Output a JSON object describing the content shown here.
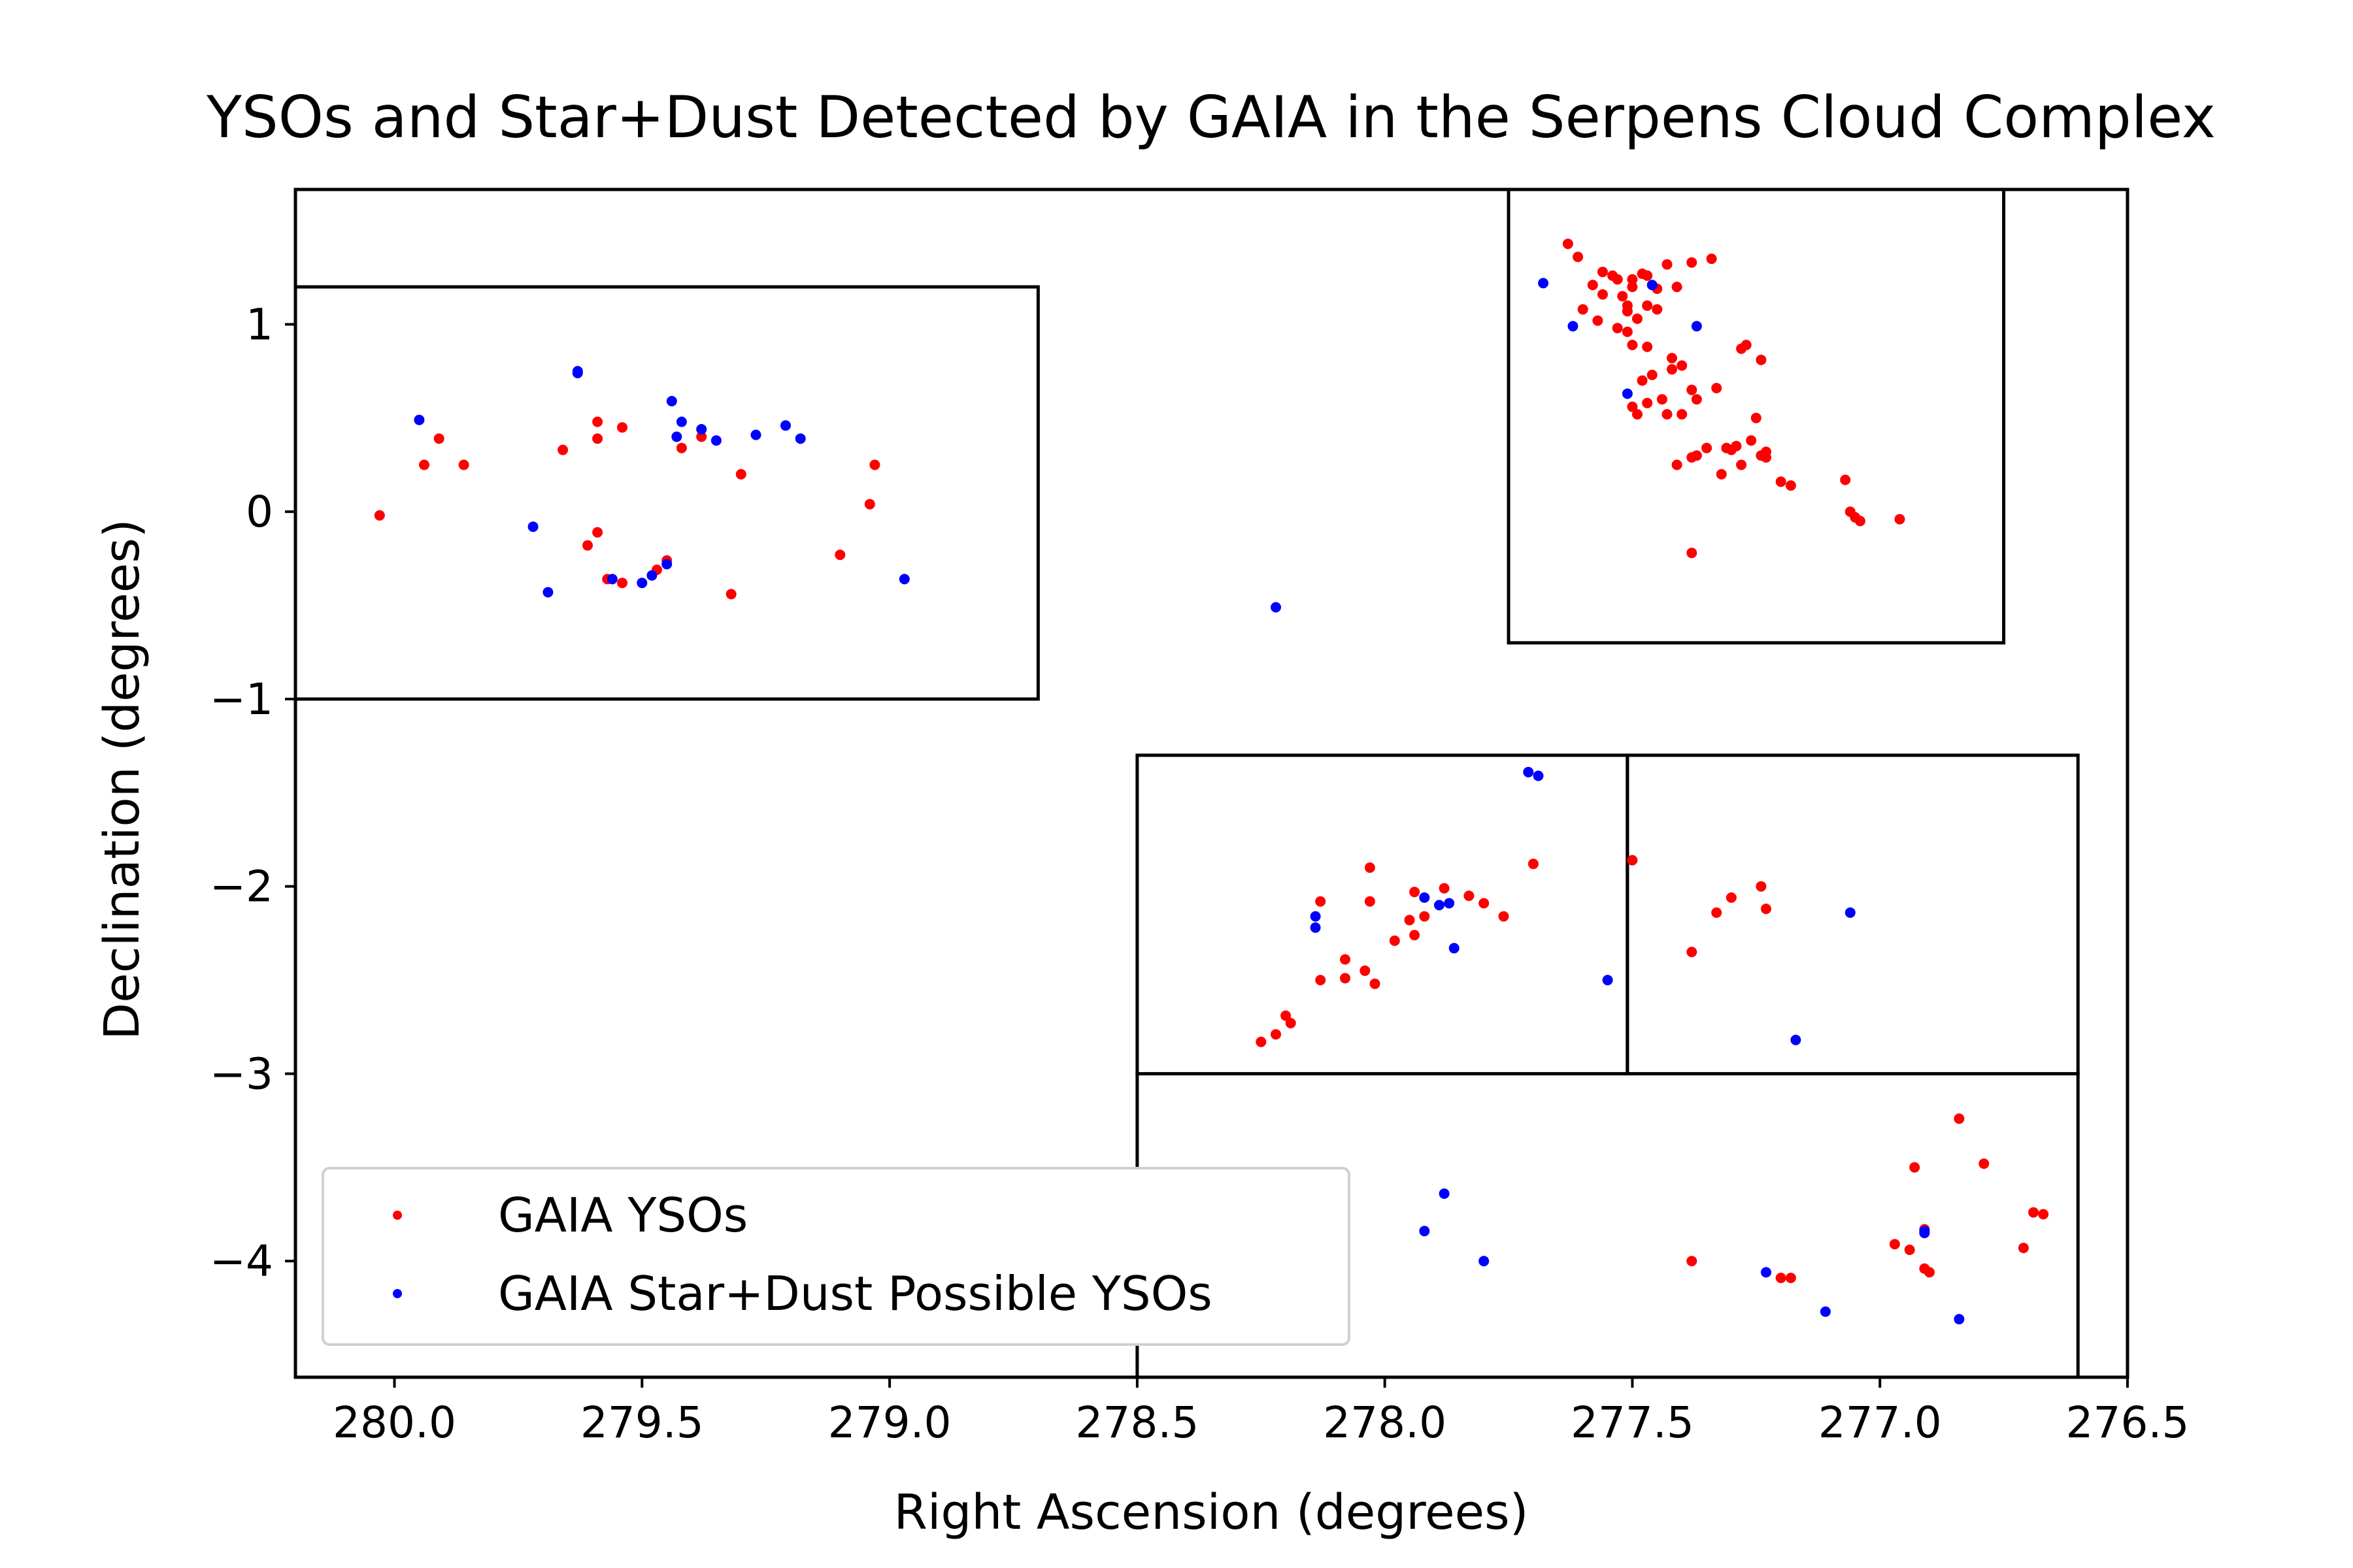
{
  "chart_data": {
    "type": "scatter",
    "title": "YSOs and Star+Dust Detected by GAIA in the Serpens Cloud Complex",
    "xlabel": "Right Ascension (degrees)",
    "ylabel": "Declination (degrees)",
    "xlim": [
      280.2,
      276.5
    ],
    "ylim": [
      -4.62,
      1.72
    ],
    "x_inverted": true,
    "xticks": [
      280.0,
      279.5,
      279.0,
      278.5,
      278.0,
      277.5,
      277.0,
      276.5
    ],
    "xtick_labels": [
      "280.0",
      "279.5",
      "279.0",
      "278.5",
      "278.0",
      "277.5",
      "277.0",
      "276.5"
    ],
    "yticks": [
      1,
      0,
      -1,
      -2,
      -3,
      -4
    ],
    "ytick_labels": [
      "1",
      "0",
      "−1",
      "−2",
      "−3",
      "−4"
    ],
    "grid": false,
    "legend_position": "lower-left",
    "regions": [
      {
        "ra": [
          278.7,
          280.2
        ],
        "dec": [
          -1.0,
          1.2
        ]
      },
      {
        "ra": [
          276.75,
          277.75
        ],
        "dec": [
          -0.7,
          1.72
        ]
      },
      {
        "ra": [
          277.51,
          278.5
        ],
        "dec": [
          -3.0,
          -1.3
        ]
      },
      {
        "ra": [
          276.6,
          277.51
        ],
        "dec": [
          -3.0,
          -1.3
        ]
      },
      {
        "ra": [
          276.6,
          278.5
        ],
        "dec": [
          -4.62,
          -3.0
        ]
      }
    ],
    "series": [
      {
        "name": "GAIA YSOs",
        "color": "#ff0000",
        "points": [
          [
            280.03,
            -0.02
          ],
          [
            279.94,
            0.25
          ],
          [
            279.91,
            0.39
          ],
          [
            279.86,
            0.25
          ],
          [
            279.66,
            0.33
          ],
          [
            279.59,
            0.48
          ],
          [
            279.59,
            0.39
          ],
          [
            279.54,
            0.45
          ],
          [
            279.42,
            0.34
          ],
          [
            279.38,
            0.4
          ],
          [
            279.3,
            0.2
          ],
          [
            279.03,
            0.25
          ],
          [
            279.04,
            0.04
          ],
          [
            279.1,
            -0.23
          ],
          [
            279.61,
            -0.18
          ],
          [
            279.59,
            -0.11
          ],
          [
            279.57,
            -0.36
          ],
          [
            279.54,
            -0.38
          ],
          [
            279.47,
            -0.31
          ],
          [
            279.45,
            -0.26
          ],
          [
            279.32,
            -0.44
          ],
          [
            278.25,
            -2.83
          ],
          [
            278.22,
            -2.79
          ],
          [
            278.2,
            -2.69
          ],
          [
            278.19,
            -2.73
          ],
          [
            278.13,
            -2.08
          ],
          [
            278.13,
            -2.5
          ],
          [
            278.08,
            -2.39
          ],
          [
            278.08,
            -2.49
          ],
          [
            278.04,
            -2.45
          ],
          [
            278.03,
            -1.9
          ],
          [
            278.03,
            -2.08
          ],
          [
            278.02,
            -2.52
          ],
          [
            277.98,
            -2.29
          ],
          [
            277.95,
            -2.18
          ],
          [
            277.94,
            -2.26
          ],
          [
            277.94,
            -2.03
          ],
          [
            277.92,
            -2.16
          ],
          [
            277.88,
            -2.01
          ],
          [
            277.83,
            -2.05
          ],
          [
            277.8,
            -2.09
          ],
          [
            277.76,
            -2.16
          ],
          [
            277.7,
            -1.88
          ],
          [
            277.5,
            -1.86
          ],
          [
            277.38,
            -2.35
          ],
          [
            277.33,
            -2.14
          ],
          [
            277.3,
            -2.06
          ],
          [
            277.24,
            -2.0
          ],
          [
            277.23,
            -2.12
          ],
          [
            278.12,
            -3.78
          ],
          [
            277.38,
            -4.0
          ],
          [
            277.2,
            -4.09
          ],
          [
            277.18,
            -4.09
          ],
          [
            276.97,
            -3.91
          ],
          [
            276.94,
            -3.94
          ],
          [
            276.93,
            -3.5
          ],
          [
            276.91,
            -3.83
          ],
          [
            276.91,
            -4.04
          ],
          [
            276.9,
            -4.06
          ],
          [
            276.84,
            -3.24
          ],
          [
            276.79,
            -3.48
          ],
          [
            276.71,
            -3.93
          ],
          [
            276.69,
            -3.74
          ],
          [
            276.67,
            -3.75
          ],
          [
            277.63,
            1.43
          ],
          [
            277.61,
            1.36
          ],
          [
            277.58,
            1.21
          ],
          [
            277.6,
            1.08
          ],
          [
            277.57,
            1.02
          ],
          [
            277.56,
            1.16
          ],
          [
            277.56,
            1.28
          ],
          [
            277.54,
            1.26
          ],
          [
            277.53,
            1.24
          ],
          [
            277.52,
            1.15
          ],
          [
            277.51,
            1.1
          ],
          [
            277.5,
            1.24
          ],
          [
            277.5,
            1.2
          ],
          [
            277.48,
            1.27
          ],
          [
            277.47,
            1.26
          ],
          [
            277.49,
            1.03
          ],
          [
            277.5,
            0.89
          ],
          [
            277.51,
            0.96
          ],
          [
            277.53,
            0.98
          ],
          [
            277.51,
            1.07
          ],
          [
            277.47,
            1.1
          ],
          [
            277.47,
            0.88
          ],
          [
            277.46,
            0.73
          ],
          [
            277.45,
            1.08
          ],
          [
            277.45,
            1.19
          ],
          [
            277.43,
            1.32
          ],
          [
            277.41,
            1.2
          ],
          [
            277.38,
            1.33
          ],
          [
            277.34,
            1.35
          ],
          [
            277.42,
            0.82
          ],
          [
            277.4,
            0.78
          ],
          [
            277.38,
            0.65
          ],
          [
            277.37,
            0.6
          ],
          [
            277.48,
            0.7
          ],
          [
            277.5,
            0.56
          ],
          [
            277.49,
            0.52
          ],
          [
            277.47,
            0.58
          ],
          [
            277.44,
            0.6
          ],
          [
            277.43,
            0.52
          ],
          [
            277.4,
            0.52
          ],
          [
            277.42,
            0.76
          ],
          [
            277.33,
            0.66
          ],
          [
            277.28,
            0.87
          ],
          [
            277.27,
            0.89
          ],
          [
            277.24,
            0.81
          ],
          [
            277.29,
            0.35
          ],
          [
            277.3,
            0.33
          ],
          [
            277.26,
            0.38
          ],
          [
            277.24,
            0.3
          ],
          [
            277.23,
            0.32
          ],
          [
            277.25,
            0.5
          ],
          [
            277.23,
            0.29
          ],
          [
            277.28,
            0.25
          ],
          [
            277.32,
            0.2
          ],
          [
            277.35,
            0.34
          ],
          [
            277.37,
            0.3
          ],
          [
            277.41,
            0.25
          ],
          [
            277.38,
            0.29
          ],
          [
            277.31,
            0.34
          ],
          [
            277.2,
            0.16
          ],
          [
            277.18,
            0.14
          ],
          [
            277.07,
            0.17
          ],
          [
            277.06,
            0.0
          ],
          [
            277.05,
            -0.03
          ],
          [
            277.04,
            -0.05
          ],
          [
            276.96,
            -0.04
          ],
          [
            277.38,
            -0.22
          ]
        ]
      },
      {
        "name": "GAIA Star+Dust Possible YSOs",
        "color": "#0000ff",
        "points": [
          [
            279.95,
            0.49
          ],
          [
            279.63,
            0.75
          ],
          [
            279.63,
            0.74
          ],
          [
            279.44,
            0.59
          ],
          [
            279.42,
            0.48
          ],
          [
            279.43,
            0.4
          ],
          [
            279.38,
            0.44
          ],
          [
            279.35,
            0.38
          ],
          [
            279.27,
            0.41
          ],
          [
            279.21,
            0.46
          ],
          [
            279.18,
            0.39
          ],
          [
            279.72,
            -0.08
          ],
          [
            279.69,
            -0.43
          ],
          [
            279.56,
            -0.36
          ],
          [
            279.5,
            -0.38
          ],
          [
            279.48,
            -0.34
          ],
          [
            279.45,
            -0.28
          ],
          [
            278.97,
            -0.36
          ],
          [
            278.22,
            -0.51
          ],
          [
            278.14,
            -2.16
          ],
          [
            278.14,
            -2.22
          ],
          [
            277.92,
            -2.06
          ],
          [
            277.89,
            -2.1
          ],
          [
            277.86,
            -2.33
          ],
          [
            277.87,
            -2.09
          ],
          [
            277.71,
            -1.39
          ],
          [
            277.69,
            -1.41
          ],
          [
            277.55,
            -2.5
          ],
          [
            277.17,
            -2.82
          ],
          [
            277.06,
            -2.14
          ],
          [
            277.88,
            -3.64
          ],
          [
            277.92,
            -3.84
          ],
          [
            277.8,
            -4.0
          ],
          [
            277.23,
            -4.06
          ],
          [
            277.11,
            -4.27
          ],
          [
            276.91,
            -3.85
          ],
          [
            276.91,
            -3.84
          ],
          [
            276.84,
            -4.31
          ],
          [
            277.68,
            1.22
          ],
          [
            277.62,
            0.99
          ],
          [
            277.51,
            0.63
          ],
          [
            277.46,
            1.21
          ],
          [
            277.37,
            0.99
          ]
        ]
      }
    ]
  }
}
